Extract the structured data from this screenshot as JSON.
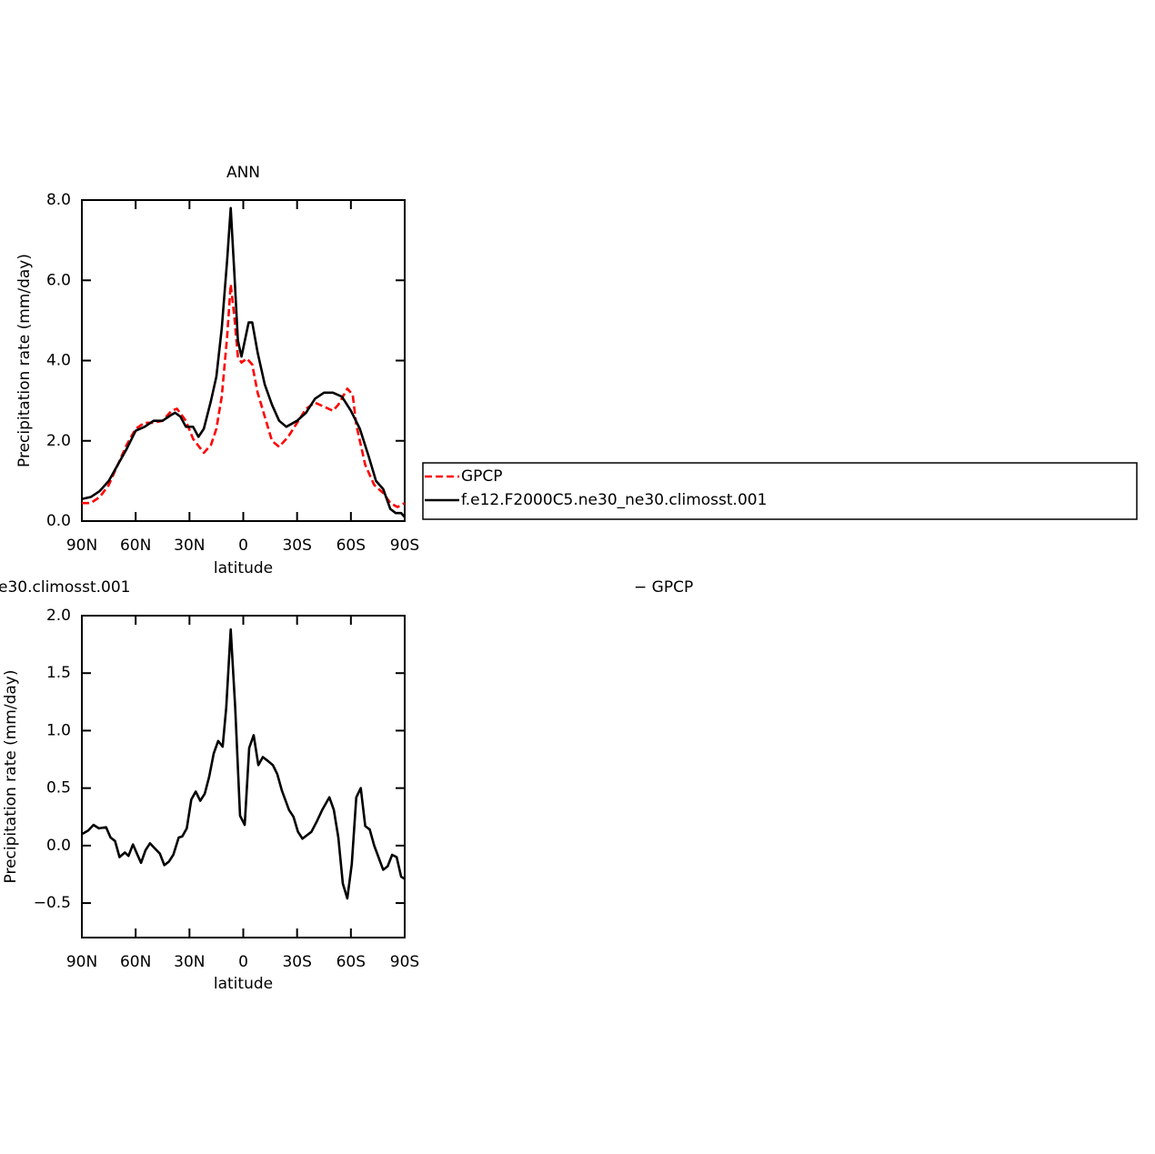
{
  "chart_data": [
    {
      "type": "line",
      "title": "ANN",
      "xlabel": "latitude",
      "ylabel": "Precipitation rate (mm/day)",
      "xlim": [
        90,
        -90
      ],
      "xticks": [
        {
          "value": 90,
          "label": "90N"
        },
        {
          "value": 60,
          "label": "60N"
        },
        {
          "value": 30,
          "label": "30N"
        },
        0,
        {
          "value": -30,
          "label": "30S"
        },
        {
          "value": -60,
          "label": "60S"
        },
        {
          "value": -90,
          "label": "90S"
        }
      ],
      "ylim": [
        0,
        8
      ],
      "yticks": [
        {
          "value": 0,
          "label": "0.0"
        },
        {
          "value": 2,
          "label": "2.0"
        },
        {
          "value": 4,
          "label": "4.0"
        },
        {
          "value": 6,
          "label": "6.0"
        },
        {
          "value": 8,
          "label": "8.0"
        }
      ],
      "legend": "right",
      "series": [
        {
          "name": "GPCP",
          "color": "#ff0000",
          "dash": "dashed",
          "x": [
            90,
            85,
            80,
            75,
            70,
            65,
            60,
            55,
            50,
            45,
            40,
            37,
            32,
            28,
            22,
            18,
            15,
            12,
            9,
            7,
            5,
            3,
            1,
            -2,
            -5,
            -8,
            -12,
            -16,
            -20,
            -25,
            -30,
            -35,
            -40,
            -45,
            -50,
            -53,
            -58,
            -61,
            -63,
            -68,
            -73,
            -78,
            -82,
            -86,
            -90
          ],
          "values": [
            0.45,
            0.45,
            0.6,
            0.9,
            1.4,
            1.9,
            2.3,
            2.45,
            2.45,
            2.5,
            2.75,
            2.8,
            2.5,
            2.05,
            1.7,
            1.9,
            2.3,
            3.1,
            4.6,
            5.9,
            5.1,
            4.1,
            3.95,
            4.05,
            3.9,
            3.2,
            2.6,
            2.0,
            1.85,
            2.1,
            2.45,
            2.8,
            2.95,
            2.85,
            2.75,
            2.9,
            3.3,
            3.15,
            2.4,
            1.4,
            0.9,
            0.7,
            0.45,
            0.35,
            0.45
          ]
        },
        {
          "name": "f.e12.F2000C5.ne30_ne30.climosst.001",
          "color": "#000000",
          "dash": "solid",
          "x": [
            90,
            85,
            80,
            75,
            70,
            65,
            60,
            55,
            50,
            45,
            40,
            38,
            35,
            32,
            28,
            25,
            22,
            18,
            15,
            12,
            9,
            7,
            5,
            3,
            1,
            -3,
            -5,
            -8,
            -12,
            -16,
            -20,
            -24,
            -30,
            -35,
            -40,
            -45,
            -50,
            -55,
            -60,
            -65,
            -70,
            -74,
            -78,
            -82,
            -85,
            -88,
            -90
          ],
          "values": [
            0.55,
            0.6,
            0.75,
            1.0,
            1.4,
            1.8,
            2.25,
            2.35,
            2.5,
            2.5,
            2.65,
            2.7,
            2.6,
            2.35,
            2.35,
            2.1,
            2.3,
            3.0,
            3.6,
            4.8,
            6.5,
            7.8,
            6.2,
            4.5,
            4.1,
            4.95,
            4.95,
            4.2,
            3.4,
            2.9,
            2.5,
            2.35,
            2.5,
            2.7,
            3.05,
            3.2,
            3.2,
            3.1,
            2.75,
            2.3,
            1.6,
            1.0,
            0.8,
            0.3,
            0.2,
            0.2,
            0.1
          ]
        }
      ]
    },
    {
      "type": "line",
      "title_parts": [
        "e30.climosst.001",
        "− GPCP"
      ],
      "xlabel": "latitude",
      "ylabel": "Precipitation rate (mm/day)",
      "xlim": [
        90,
        -90
      ],
      "xticks": [
        {
          "value": 90,
          "label": "90N"
        },
        {
          "value": 60,
          "label": "60N"
        },
        {
          "value": 30,
          "label": "30N"
        },
        0,
        {
          "value": -30,
          "label": "30S"
        },
        {
          "value": -60,
          "label": "60S"
        },
        {
          "value": -90,
          "label": "90S"
        }
      ],
      "ylim": [
        -0.8,
        2.0
      ],
      "yticks": [
        {
          "value": -0.5,
          "label": "−0.5"
        },
        {
          "value": 0,
          "label": "0.0"
        },
        {
          "value": 0.5,
          "label": "0.5"
        },
        {
          "value": 1,
          "label": "1.0"
        },
        {
          "value": 1.5,
          "label": "1.5"
        },
        {
          "value": 2,
          "label": "2.0"
        }
      ],
      "series": [
        {
          "color": "#000000",
          "dash": "solid",
          "x": [
            90,
            86.5,
            83.5,
            80.5,
            76.5,
            74,
            71.5,
            69,
            66,
            64,
            61.5,
            59,
            57,
            54.5,
            52,
            49,
            46.5,
            44,
            41.5,
            39,
            36,
            34,
            31.5,
            29,
            26.5,
            24,
            21.5,
            19,
            16.5,
            14,
            11.5,
            9.5,
            7,
            4.5,
            1.8,
            -0.8,
            -3.3,
            -5.8,
            -8.4,
            -10.9,
            -13.4,
            -16.5,
            -19,
            -21.5,
            -25.5,
            -28,
            -30.5,
            -33,
            -38,
            -41,
            -44,
            -48,
            -50.5,
            -53,
            -55.5,
            -58,
            -60.5,
            -63,
            -65.5,
            -68,
            -70.5,
            -73,
            -78,
            -80.5,
            -83,
            -85.5,
            -88,
            -90
          ],
          "values": [
            0.1,
            0.13,
            0.18,
            0.15,
            0.16,
            0.07,
            0.04,
            -0.1,
            -0.06,
            -0.09,
            0.01,
            -0.08,
            -0.15,
            -0.04,
            0.02,
            -0.03,
            -0.07,
            -0.17,
            -0.14,
            -0.08,
            0.07,
            0.08,
            0.15,
            0.4,
            0.47,
            0.39,
            0.45,
            0.6,
            0.8,
            0.91,
            0.86,
            1.2,
            1.88,
            1.2,
            0.26,
            0.18,
            0.85,
            0.96,
            0.7,
            0.77,
            0.74,
            0.7,
            0.62,
            0.48,
            0.31,
            0.25,
            0.12,
            0.06,
            0.12,
            0.21,
            0.31,
            0.42,
            0.31,
            0.07,
            -0.33,
            -0.46,
            -0.16,
            0.42,
            0.5,
            0.17,
            0.14,
            0.0,
            -0.21,
            -0.18,
            -0.08,
            -0.1,
            -0.27,
            -0.29
          ]
        }
      ]
    }
  ]
}
